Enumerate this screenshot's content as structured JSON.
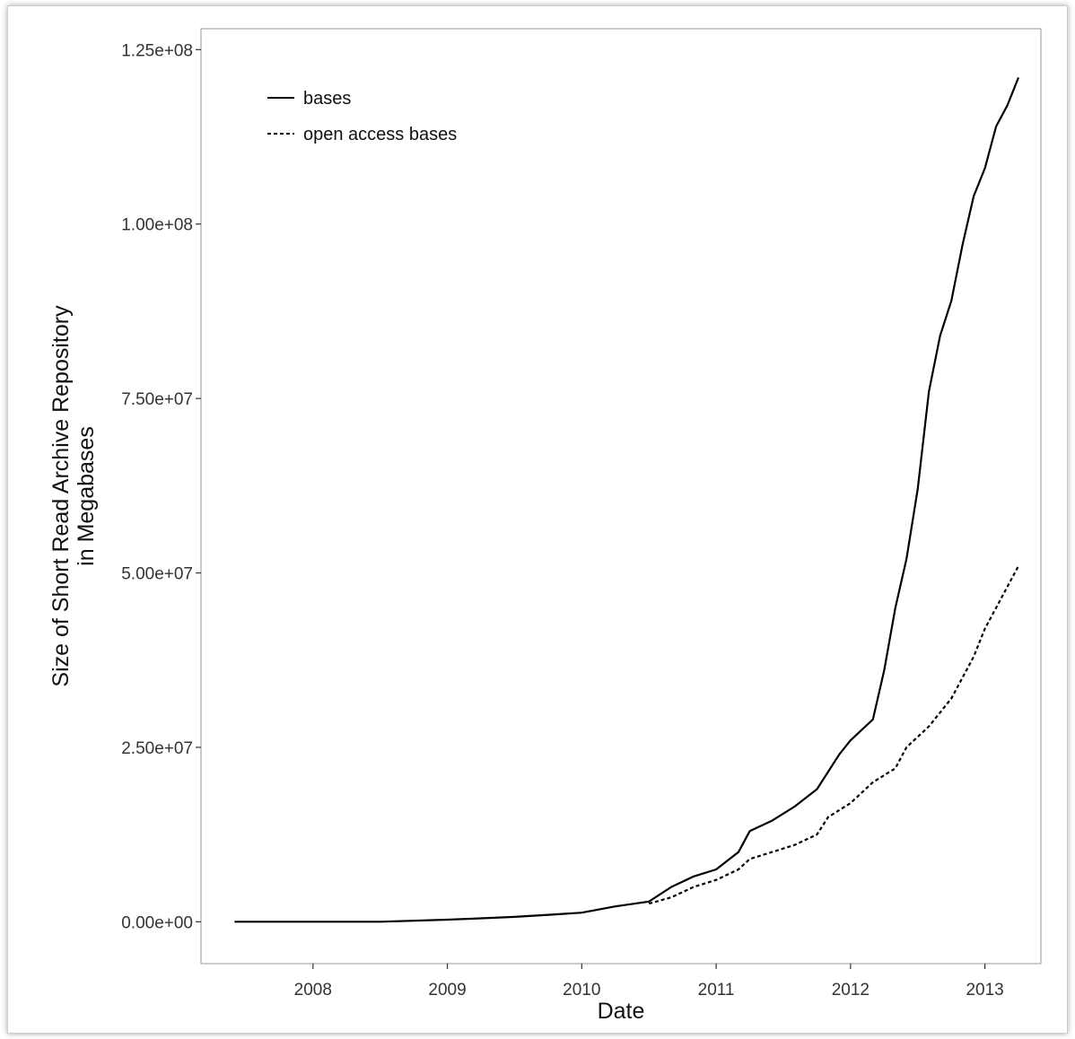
{
  "chart_data": {
    "type": "line",
    "title": "",
    "xlabel": "Date",
    "ylabel": [
      "Size of Short Read Archive Repository",
      "in Megabases"
    ],
    "xlim": [
      "2007-03",
      "2013-06"
    ],
    "ylim": [
      -6000000,
      128000000
    ],
    "xticks": [
      {
        "date": "2008-01-01",
        "label": "2008"
      },
      {
        "date": "2009-01-01",
        "label": "2009"
      },
      {
        "date": "2010-01-01",
        "label": "2010"
      },
      {
        "date": "2011-01-01",
        "label": "2011"
      },
      {
        "date": "2012-01-01",
        "label": "2012"
      },
      {
        "date": "2013-01-01",
        "label": "2013"
      }
    ],
    "yticks": [
      {
        "value": 0,
        "label": "0.00e+00"
      },
      {
        "value": 25000000,
        "label": "2.50e+07"
      },
      {
        "value": 50000000,
        "label": "5.00e+07"
      },
      {
        "value": 75000000,
        "label": "7.50e+07"
      },
      {
        "value": 100000000,
        "label": "1.00e+08"
      },
      {
        "value": 125000000,
        "label": "1.25e+08"
      }
    ],
    "grid": false,
    "legend_position": "top-left",
    "series": [
      {
        "name": "bases",
        "style": "solid",
        "color": "#000000",
        "points": [
          [
            "2007-06",
            0
          ],
          [
            "2008-01",
            0
          ],
          [
            "2008-07",
            0
          ],
          [
            "2009-01",
            300000
          ],
          [
            "2009-04",
            500000
          ],
          [
            "2009-07",
            700000
          ],
          [
            "2009-10",
            1000000
          ],
          [
            "2010-01",
            1300000
          ],
          [
            "2010-04",
            2200000
          ],
          [
            "2010-07",
            2900000
          ],
          [
            "2010-09",
            5000000
          ],
          [
            "2010-11",
            6500000
          ],
          [
            "2011-01",
            7500000
          ],
          [
            "2011-03",
            10000000
          ],
          [
            "2011-04",
            13000000
          ],
          [
            "2011-06",
            14500000
          ],
          [
            "2011-08",
            16500000
          ],
          [
            "2011-10",
            19000000
          ],
          [
            "2011-12",
            24000000
          ],
          [
            "2012-01",
            26000000
          ],
          [
            "2012-03",
            29000000
          ],
          [
            "2012-04",
            36000000
          ],
          [
            "2012-05",
            45000000
          ],
          [
            "2012-06",
            52000000
          ],
          [
            "2012-07",
            62000000
          ],
          [
            "2012-08",
            76000000
          ],
          [
            "2012-09",
            84000000
          ],
          [
            "2012-10",
            89000000
          ],
          [
            "2012-11",
            97000000
          ],
          [
            "2012-12",
            104000000
          ],
          [
            "2013-01",
            108000000
          ],
          [
            "2013-02",
            114000000
          ],
          [
            "2013-03",
            117000000
          ],
          [
            "2013-04",
            121000000
          ]
        ]
      },
      {
        "name": "open access bases",
        "style": "dotted",
        "color": "#000000",
        "points": [
          [
            "2010-07",
            2600000
          ],
          [
            "2010-09",
            3500000
          ],
          [
            "2010-11",
            5000000
          ],
          [
            "2011-01",
            6000000
          ],
          [
            "2011-03",
            7500000
          ],
          [
            "2011-04",
            9000000
          ],
          [
            "2011-06",
            10000000
          ],
          [
            "2011-08",
            11000000
          ],
          [
            "2011-10",
            12500000
          ],
          [
            "2011-11",
            15000000
          ],
          [
            "2012-01",
            17000000
          ],
          [
            "2012-03",
            20000000
          ],
          [
            "2012-05",
            22000000
          ],
          [
            "2012-06",
            25000000
          ],
          [
            "2012-08",
            28000000
          ],
          [
            "2012-10",
            32000000
          ],
          [
            "2012-12",
            38000000
          ],
          [
            "2013-01",
            42000000
          ],
          [
            "2013-02",
            45000000
          ],
          [
            "2013-04",
            51000000
          ]
        ]
      }
    ]
  }
}
